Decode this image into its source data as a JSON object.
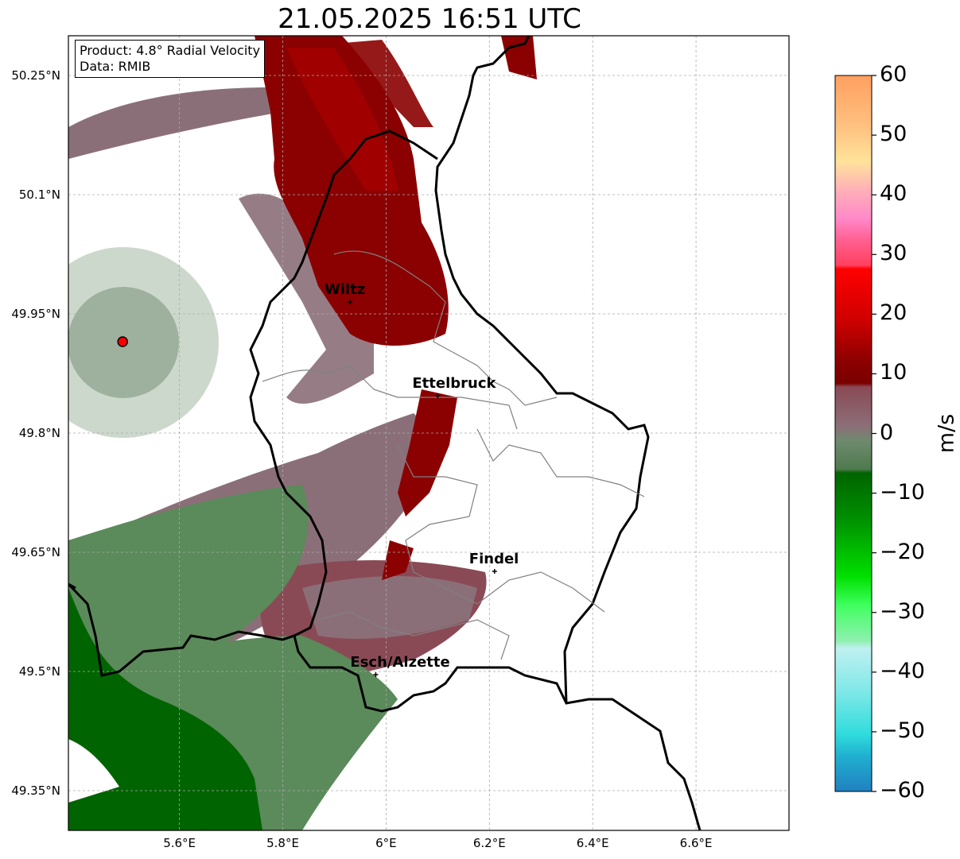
{
  "title": "21.05.2025 16:51 UTC",
  "info": {
    "product": "Product: 4.8° Radial Velocity",
    "data": "Data: RMIB"
  },
  "lat_labels": [
    {
      "text": "50.25°N",
      "lat": 50.25
    },
    {
      "text": "50.1°N",
      "lat": 50.1
    },
    {
      "text": "49.95°N",
      "lat": 49.95
    },
    {
      "text": "49.8°N",
      "lat": 49.8
    },
    {
      "text": "49.65°N",
      "lat": 49.65
    },
    {
      "text": "49.5°N",
      "lat": 49.5
    },
    {
      "text": "49.35°N",
      "lat": 49.35
    }
  ],
  "lon_labels": [
    {
      "text": "5.6°E",
      "lon": 5.6
    },
    {
      "text": "5.8°E",
      "lon": 5.8
    },
    {
      "text": "6°E",
      "lon": 6.0
    },
    {
      "text": "6.2°E",
      "lon": 6.2
    },
    {
      "text": "6.4°E",
      "lon": 6.4
    },
    {
      "text": "6.6°E",
      "lon": 6.6
    }
  ],
  "extent": {
    "lon_min": 5.385,
    "lon_max": 6.78,
    "lat_min": 49.3,
    "lat_max": 50.3
  },
  "cities": [
    {
      "name": "Wiltz",
      "lon": 5.93,
      "lat": 49.965
    },
    {
      "name": "Ettelbruck",
      "lon": 6.1,
      "lat": 49.847
    },
    {
      "name": "Findel",
      "lon": 6.21,
      "lat": 49.626
    },
    {
      "name": "Esch/Alzette",
      "lon": 5.98,
      "lat": 49.496
    }
  ],
  "radar_site": {
    "lon": 5.49,
    "lat": 49.915,
    "color": "#ff0000"
  },
  "colorbar": {
    "label": "m/s",
    "min": -60,
    "max": 60,
    "ticks": [
      "60",
      "50",
      "40",
      "30",
      "20",
      "10",
      "0",
      "−10",
      "−20",
      "−30",
      "−40",
      "−50",
      "−60"
    ],
    "tick_values": [
      60,
      50,
      40,
      30,
      20,
      10,
      0,
      -10,
      -20,
      -30,
      -40,
      -50,
      -60
    ]
  },
  "colors": {
    "inbound_strong": "#006400",
    "inbound_weak": "#5b8a5b",
    "near_zero": "#8b6f78",
    "outbound_mid": "#8b0000",
    "outbound_strong": "#c00000",
    "outbound_pink": "#ff7aa0",
    "outbound_orange": "#ffa060"
  }
}
